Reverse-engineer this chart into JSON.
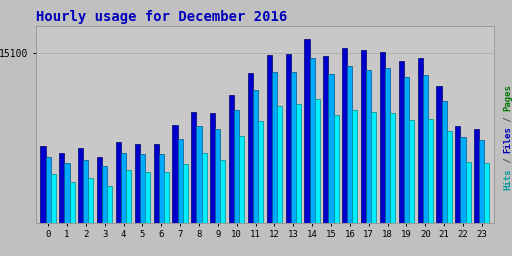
{
  "title": "Hourly usage for December 2016",
  "hours": [
    0,
    1,
    2,
    3,
    4,
    5,
    6,
    7,
    8,
    9,
    10,
    11,
    12,
    13,
    14,
    15,
    16,
    17,
    18,
    19,
    20,
    21,
    22,
    23
  ],
  "hits": [
    6800,
    6200,
    6600,
    5800,
    7200,
    7000,
    7000,
    8700,
    9800,
    9700,
    11300,
    13300,
    14900,
    15000,
    16300,
    14800,
    15500,
    15300,
    15200,
    14400,
    14600,
    12100,
    8600,
    8300
  ],
  "files": [
    5800,
    5300,
    5600,
    5000,
    6200,
    6100,
    6100,
    7400,
    8600,
    8300,
    10000,
    11800,
    13400,
    13400,
    14600,
    13200,
    13900,
    13600,
    13700,
    12900,
    13100,
    10800,
    7600,
    7300
  ],
  "pages": [
    4300,
    3600,
    4000,
    3300,
    4700,
    4500,
    4500,
    5200,
    6200,
    5600,
    7700,
    9000,
    10400,
    10500,
    11000,
    9600,
    10000,
    9800,
    9700,
    9100,
    9200,
    8100,
    5400,
    5300
  ],
  "ylim_max": 17500,
  "ytick_val": 15100,
  "ytick_label": "15100",
  "bg_color": "#c0c0c0",
  "plot_bg": "#c8c8c8",
  "hit_color": "#0000cc",
  "file_color": "#00aaff",
  "page_color": "#00eeff",
  "hit_edge": "#000066",
  "file_edge": "#005588",
  "page_edge": "#008888",
  "grid_color": "#b0b0b0",
  "title_color": "#0000bb",
  "bar_width": 0.27,
  "ylabel_pages_color": "#007700",
  "ylabel_files_color": "#0000bb",
  "ylabel_hits_color": "#009999"
}
